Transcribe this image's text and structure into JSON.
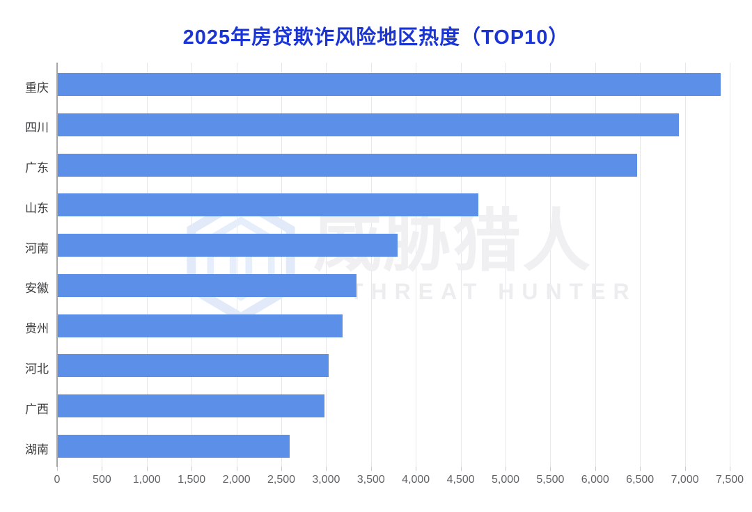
{
  "title": "2025年房贷欺诈风险地区热度（TOP10）",
  "title_color": "#1b35d4",
  "watermark": {
    "cn": "威胁猎人",
    "en": "THREAT HUNTER",
    "logo_icon": "hexagon-shield-icon",
    "logo_color": "#e2eafa"
  },
  "chart_data": {
    "type": "bar",
    "orientation": "horizontal",
    "title": "2025年房贷欺诈风险地区热度（TOP10）",
    "categories": [
      "重庆",
      "四川",
      "广东",
      "山东",
      "河南",
      "安徽",
      "贵州",
      "河北",
      "广西",
      "湖南"
    ],
    "values": [
      7400,
      6930,
      6470,
      4700,
      3800,
      3340,
      3180,
      3030,
      2980,
      2590
    ],
    "xlabel": "",
    "ylabel": "",
    "xlim": [
      0,
      7500
    ],
    "x_ticks": [
      0,
      500,
      1000,
      1500,
      2000,
      2500,
      3000,
      3500,
      4000,
      4500,
      5000,
      5500,
      6000,
      6500,
      7000,
      7500
    ],
    "x_tick_labels": [
      "0",
      "500",
      "1,000",
      "1,500",
      "2,000",
      "2,500",
      "3,000",
      "3,500",
      "4,000",
      "4,500",
      "5,000",
      "5,500",
      "6,000",
      "6,500",
      "7,000",
      "7,500"
    ],
    "grid": true,
    "legend": "none",
    "bar_color": "#5b8fe8",
    "axis_color": "#a6a6a8",
    "grid_color": "#e7e7e9"
  }
}
